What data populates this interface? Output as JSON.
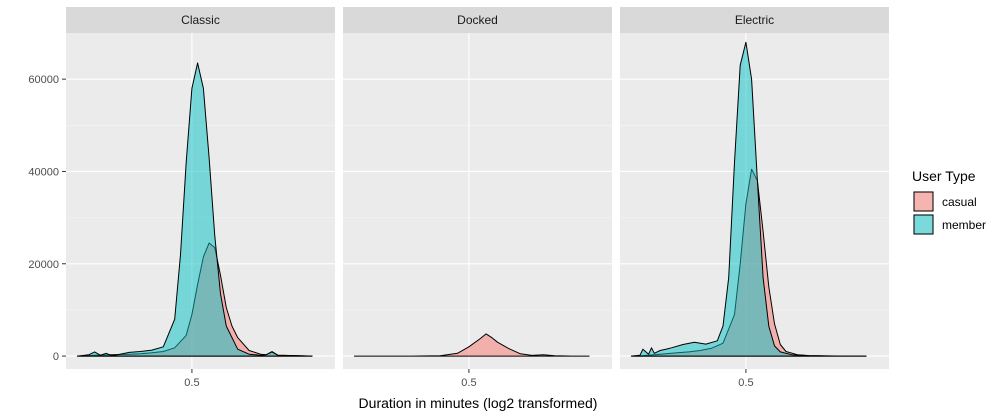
{
  "chart_data": {
    "type": "area",
    "facets": [
      "Classic",
      "Docked",
      "Electric"
    ],
    "xlabel": "Duration in minutes (log2 transformed)",
    "ylabel": "",
    "x_ticks": [
      {
        "value": 0.5,
        "label": "0.5"
      }
    ],
    "y_ticks": [
      0,
      20000,
      40000,
      60000
    ],
    "y_tick_labels": [
      "0",
      "20000",
      "40000",
      "60000"
    ],
    "ylim": [
      0,
      70000
    ],
    "legend": {
      "title": "User Type",
      "position": "right",
      "entries": [
        {
          "name": "casual",
          "color": "#F8766D"
        },
        {
          "name": "member",
          "color": "#00BFC4"
        }
      ]
    },
    "grid": true,
    "panels": [
      {
        "facet": "Classic",
        "series": [
          {
            "name": "casual",
            "x": [
              -1.5,
              -1.2,
              -0.9,
              -0.6,
              -0.4,
              -0.2,
              0.0,
              0.2,
              0.4,
              0.5,
              0.6,
              0.7,
              0.8,
              0.9,
              1.0,
              1.1,
              1.2,
              1.3,
              1.5,
              1.7,
              1.8,
              1.9,
              2.0,
              2.3,
              2.6
            ],
            "y": [
              0,
              200,
              300,
              400,
              500,
              700,
              1000,
              1800,
              4500,
              9000,
              15500,
              21500,
              24500,
              23500,
              17500,
              10500,
              6500,
              4000,
              1200,
              400,
              300,
              1000,
              200,
              100,
              0
            ]
          },
          {
            "name": "member",
            "x": [
              -1.5,
              -1.3,
              -1.2,
              -1.1,
              -1.0,
              -0.9,
              -0.8,
              -0.6,
              -0.4,
              -0.2,
              0.0,
              0.2,
              0.3,
              0.4,
              0.5,
              0.6,
              0.7,
              0.8,
              0.9,
              1.0,
              1.1,
              1.3,
              1.5,
              1.7,
              1.8,
              1.9,
              2.0,
              2.3,
              2.6
            ],
            "y": [
              0,
              300,
              900,
              200,
              600,
              100,
              300,
              800,
              1000,
              1300,
              2000,
              8000,
              22000,
              42000,
              58000,
              63500,
              58000,
              43000,
              26000,
              13500,
              6500,
              1500,
              400,
              200,
              300,
              900,
              200,
              100,
              0
            ]
          }
        ]
      },
      {
        "facet": "Docked",
        "series": [
          {
            "name": "casual",
            "x": [
              -1.5,
              -0.5,
              0.0,
              0.3,
              0.5,
              0.7,
              0.8,
              0.9,
              1.0,
              1.2,
              1.4,
              1.6,
              1.8,
              2.0,
              2.3,
              2.6
            ],
            "y": [
              0,
              0,
              50,
              600,
              2000,
              3800,
              4800,
              4000,
              3000,
              1600,
              500,
              150,
              300,
              50,
              0,
              0
            ]
          }
        ]
      },
      {
        "facet": "Electric",
        "series": [
          {
            "name": "casual",
            "x": [
              -1.5,
              -1.3,
              -1.1,
              -0.9,
              -0.7,
              -0.5,
              -0.3,
              -0.1,
              0.1,
              0.3,
              0.4,
              0.5,
              0.6,
              0.7,
              0.8,
              0.9,
              1.0,
              1.1,
              1.2,
              1.4,
              1.6,
              1.8,
              2.2,
              2.6
            ],
            "y": [
              0,
              100,
              300,
              500,
              700,
              900,
              1200,
              1700,
              2800,
              9000,
              20000,
              33000,
              40500,
              38000,
              27000,
              15000,
              7000,
              2500,
              1000,
              300,
              100,
              50,
              0,
              0
            ]
          },
          {
            "name": "member",
            "x": [
              -1.5,
              -1.35,
              -1.3,
              -1.2,
              -1.15,
              -1.1,
              -1.0,
              -0.9,
              -0.8,
              -0.6,
              -0.4,
              -0.2,
              0.0,
              0.1,
              0.2,
              0.3,
              0.4,
              0.5,
              0.6,
              0.7,
              0.8,
              0.9,
              1.0,
              1.1,
              1.3,
              1.6,
              2.0,
              2.6
            ],
            "y": [
              0,
              200,
              1500,
              400,
              1800,
              600,
              1200,
              1500,
              1800,
              2500,
              3000,
              2600,
              3300,
              6500,
              17000,
              42000,
              63000,
              68000,
              60000,
              38000,
              17000,
              6500,
              2200,
              900,
              300,
              100,
              0,
              0
            ]
          }
        ]
      }
    ]
  }
}
